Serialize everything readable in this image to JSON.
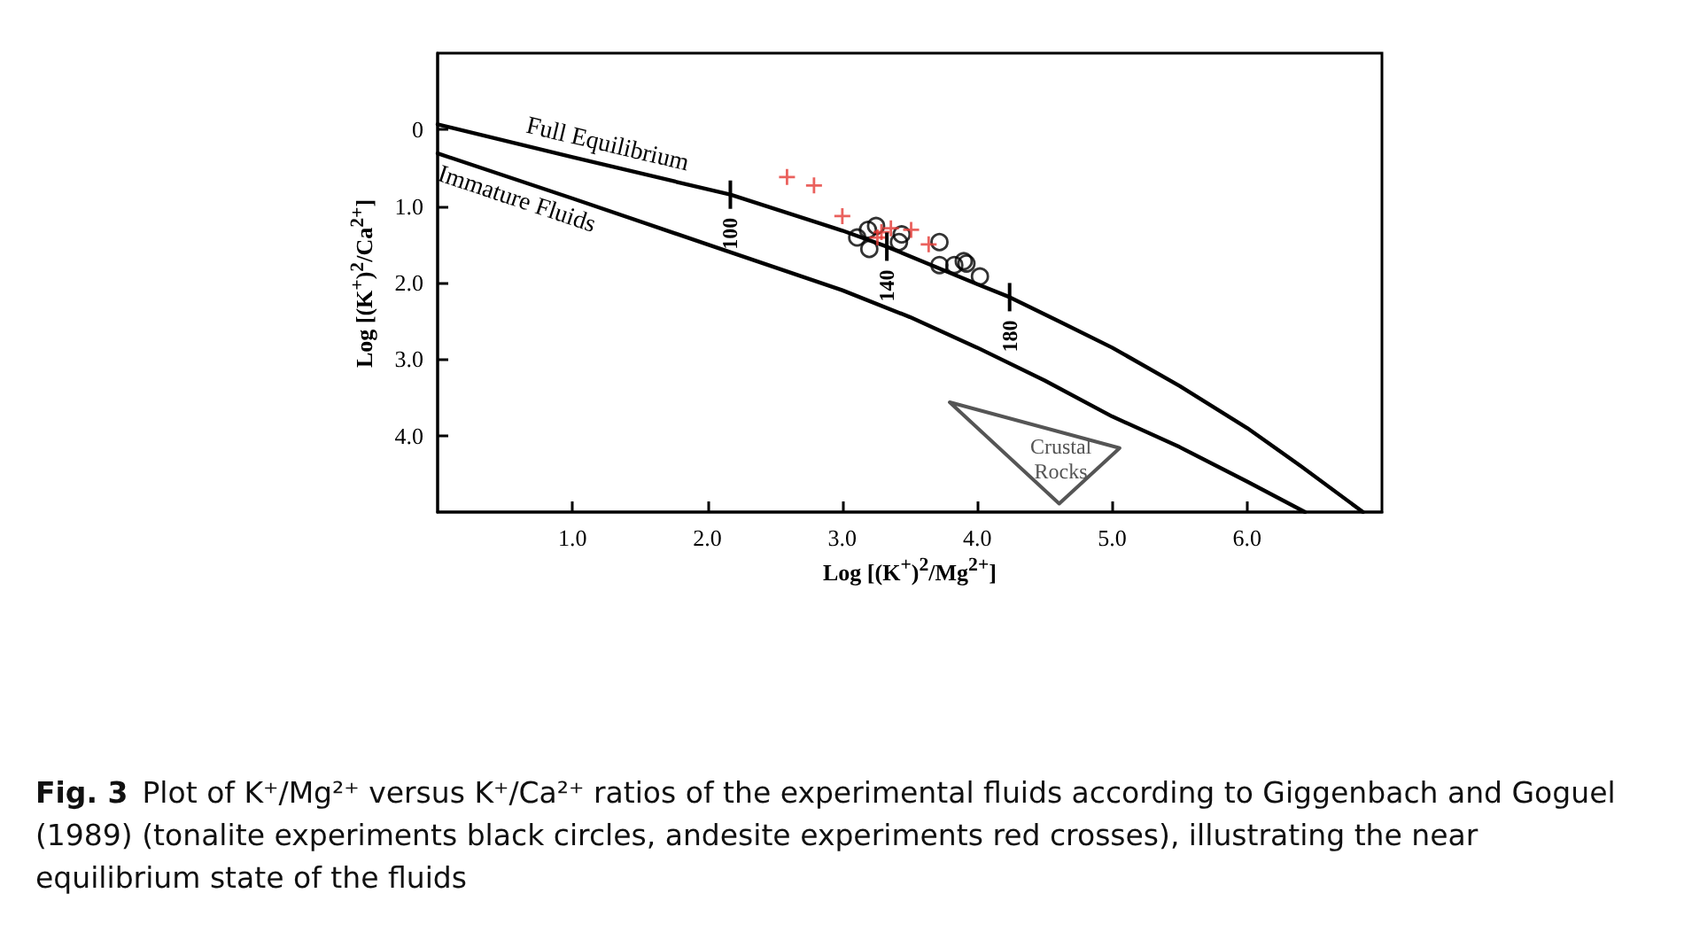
{
  "chart_data": {
    "type": "line",
    "title": "Fig. 3",
    "subtitle": "Plot of K⁺/Mg²⁺ versus K⁺/Ca²⁺ ratios of the experimental fluids according to Giggenbach and Goguel (1989) (tonalite experiments black circles, andesite experiments red crosses), illustrating the near equilibrium state of the fluids",
    "xlabel": "Log [(K$^{+}$)$^{2}$/Mg$^{2+}$]",
    "ylabel": "Log [(K$^{+}$)$^{2}$/Ca$^{2+}$]",
    "xlim": [
      0,
      7
    ],
    "xticks": [
      {
        "value": 1,
        "label": "1.0"
      },
      {
        "value": 2,
        "label": "2.0"
      },
      {
        "value": 3,
        "label": "3.0"
      },
      {
        "value": 4,
        "label": "4.0"
      },
      {
        "value": 5,
        "label": "5.0"
      },
      {
        "value": 6,
        "label": "6.0"
      }
    ],
    "ylim": [
      5,
      -1
    ],
    "yticks": [
      0,
      {
        "value": 1,
        "label": "1.0"
      },
      {
        "value": 2,
        "label": "2.0"
      },
      {
        "value": 3,
        "label": "3.0"
      },
      {
        "value": 4,
        "label": "4.0"
      }
    ],
    "grid": false,
    "series": [
      {
        "name": "Full Equilibrium",
        "color": "#000000",
        "marker": "none",
        "line_style": "solid",
        "x": [
          0,
          1,
          2.17,
          3,
          3.33,
          4,
          4.24,
          4.6,
          5,
          5.5,
          6,
          6.4,
          6.86
        ],
        "values": [
          -0.07,
          0.36,
          0.85,
          1.32,
          1.53,
          2.02,
          2.19,
          2.5,
          2.85,
          3.35,
          3.9,
          4.4,
          5.0
        ]
      },
      {
        "name": "Immature Fluids",
        "color": "#000000",
        "marker": "none",
        "line_style": "solid",
        "x": [
          0,
          1,
          2,
          3,
          3.5,
          4,
          4.5,
          5,
          5.5,
          6,
          6.43
        ],
        "values": [
          0.31,
          0.9,
          1.5,
          2.1,
          2.45,
          2.85,
          3.28,
          3.75,
          4.15,
          4.6,
          5.0
        ]
      },
      {
        "type": "scatter",
        "color": "#000000",
        "marker": "circle",
        "x": [
          3.11,
          3.19,
          3.25,
          3.2,
          3.44,
          3.42,
          3.72,
          3.72,
          3.83,
          3.9,
          3.92,
          4.02
        ],
        "values": [
          1.41,
          1.31,
          1.26,
          1.56,
          1.37,
          1.47,
          1.47,
          1.77,
          1.77,
          1.72,
          1.75,
          1.92
        ]
      },
      {
        "type": "scatter",
        "color": "#e53935",
        "marker": "cross",
        "x": [
          2.59,
          2.79,
          3.0,
          3.26,
          3.29,
          3.36,
          3.51,
          3.64
        ],
        "values": [
          0.62,
          0.73,
          1.13,
          1.41,
          1.34,
          1.29,
          1.31,
          1.5
        ]
      }
    ],
    "annotations": [
      {
        "text": "100",
        "x": 2.17,
        "y": 0.85
      },
      {
        "text": "140",
        "x": 3.33,
        "y": 1.53
      },
      {
        "text": "180",
        "x": 4.24,
        "y": 2.19
      },
      "Crustal\nRocks"
    ]
  }
}
